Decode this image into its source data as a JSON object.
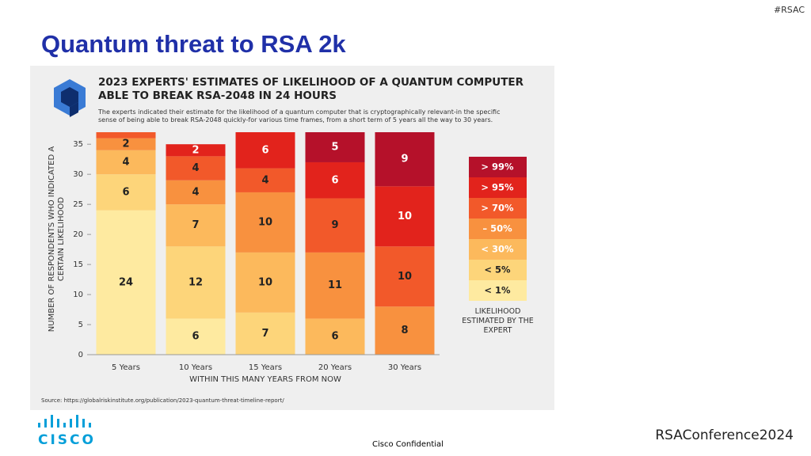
{
  "slide": {
    "title": "Quantum threat to RSA 2k",
    "hashtag": "#RSAC",
    "confidential": "Cisco Confidential",
    "logo": "cisco",
    "conference": "RSAConference2024"
  },
  "chart_data": {
    "type": "stacked_bar",
    "title": "2023 EXPERTS' ESTIMATES OF LIKELIHOOD OF A QUANTUM COMPUTER ABLE TO BREAK RSA-2048 IN 24 HOURS",
    "subtitle": "The experts indicated their estimate for the likelihood of a quantum computer that is cryptographically relevant-in the specific sense of being able to break RSA-2048 quickly-for various time frames, from a short term of 5 years all the way to 30 years.",
    "source": "Source: https://globalriskinstitute.org/publication/2023-quantum-threat-timeline-report/",
    "x_label": "WITHIN THIS MANY YEARS FROM NOW",
    "y_label": "NUMBER OF RESPONDENTS WHO INDICATED A CERTAIN LIKELIHOOD",
    "legend_title": "LIKELIHOOD ESTIMATED BY THE EXPERT",
    "categories": [
      "5 Years",
      "10 Years",
      "15 Years",
      "20 Years",
      "30 Years"
    ],
    "series": [
      {
        "name": "< 1%",
        "color": "#feeaa0",
        "values": [
          24,
          6,
          0,
          0,
          0
        ]
      },
      {
        "name": "< 5%",
        "color": "#fdd57a",
        "values": [
          6,
          12,
          7,
          0,
          0
        ]
      },
      {
        "name": "< 30%",
        "color": "#fcb95c",
        "values": [
          4,
          7,
          10,
          6,
          0
        ]
      },
      {
        "name": "– 50%",
        "color": "#f8913f",
        "values": [
          2,
          4,
          10,
          11,
          8
        ]
      },
      {
        "name": "> 70%",
        "color": "#f2592a",
        "values": [
          1,
          4,
          4,
          9,
          10
        ]
      },
      {
        "name": "> 95%",
        "color": "#e2231c",
        "values": [
          0,
          2,
          6,
          6,
          10
        ]
      },
      {
        "name": "> 99%",
        "color": "#b5112a",
        "values": [
          0,
          0,
          0,
          5,
          9
        ]
      }
    ],
    "ylim": [
      0,
      37
    ],
    "yticks": [
      0,
      5,
      10,
      15,
      20,
      25,
      30,
      35
    ]
  }
}
